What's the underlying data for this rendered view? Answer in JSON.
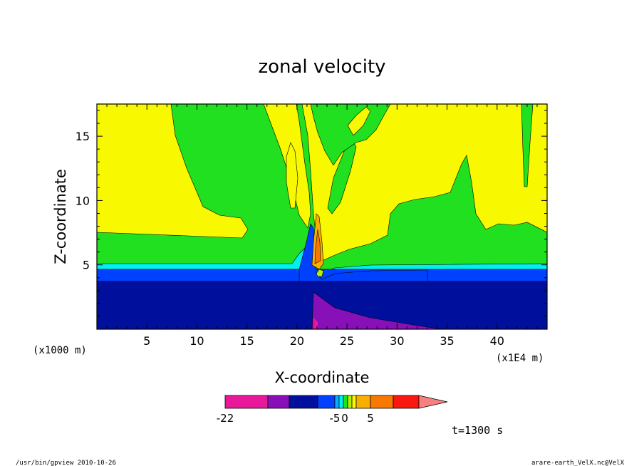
{
  "chart_data": {
    "type": "heatmap",
    "title": "zonal velocity",
    "xlabel": "X-coordinate",
    "ylabel": "Z-coordinate",
    "x_unit_left": "(x1000 m)",
    "x_unit_right": "(x1E4 m)",
    "x_ticks": [
      "5",
      "10",
      "15",
      "20",
      "25",
      "30",
      "35",
      "40"
    ],
    "y_ticks": [
      "5",
      "10",
      "15"
    ],
    "xlim": [
      0,
      45
    ],
    "ylim": [
      0,
      17.5
    ],
    "time_label": "t=1300 s",
    "colorbar_labels": [
      "-22",
      "-5",
      "0",
      "5"
    ],
    "colorbar_colors": [
      "#e8189a",
      "#8810b8",
      "#00109c",
      "#0040ff",
      "#00b0ff",
      "#00f0f0",
      "#20e020",
      "#b0f000",
      "#f8f800",
      "#f8b000",
      "#f87800",
      "#f81810",
      "#f88080"
    ],
    "grid": false
  },
  "footer": {
    "left": "/usr/bin/gpview   2010-10-26",
    "right": "arare-earth_VelX.nc@VelX"
  }
}
